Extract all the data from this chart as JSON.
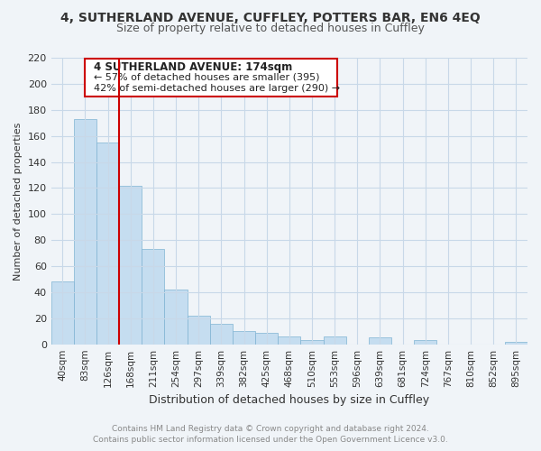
{
  "title": "4, SUTHERLAND AVENUE, CUFFLEY, POTTERS BAR, EN6 4EQ",
  "subtitle": "Size of property relative to detached houses in Cuffley",
  "xlabel": "Distribution of detached houses by size in Cuffley",
  "ylabel": "Number of detached properties",
  "bar_color": "#c5ddf0",
  "bar_edge_color": "#7fb3d3",
  "categories": [
    "40sqm",
    "83sqm",
    "126sqm",
    "168sqm",
    "211sqm",
    "254sqm",
    "297sqm",
    "339sqm",
    "382sqm",
    "425sqm",
    "468sqm",
    "510sqm",
    "553sqm",
    "596sqm",
    "639sqm",
    "681sqm",
    "724sqm",
    "767sqm",
    "810sqm",
    "852sqm",
    "895sqm"
  ],
  "values": [
    48,
    173,
    155,
    122,
    73,
    42,
    22,
    16,
    10,
    9,
    6,
    3,
    6,
    0,
    5,
    0,
    3,
    0,
    0,
    0,
    2
  ],
  "ylim": [
    0,
    220
  ],
  "yticks": [
    0,
    20,
    40,
    60,
    80,
    100,
    120,
    140,
    160,
    180,
    200,
    220
  ],
  "annotation_title": "4 SUTHERLAND AVENUE: 174sqm",
  "annotation_line1": "← 57% of detached houses are smaller (395)",
  "annotation_line2": "42% of semi-detached houses are larger (290) →",
  "annotation_box_color": "#ffffff",
  "annotation_box_edge": "#cc0000",
  "footer_line1": "Contains HM Land Registry data © Crown copyright and database right 2024.",
  "footer_line2": "Contains public sector information licensed under the Open Government Licence v3.0.",
  "grid_color": "#c8d8e8",
  "vline_x": 2.5,
  "bg_color": "#f0f4f8"
}
